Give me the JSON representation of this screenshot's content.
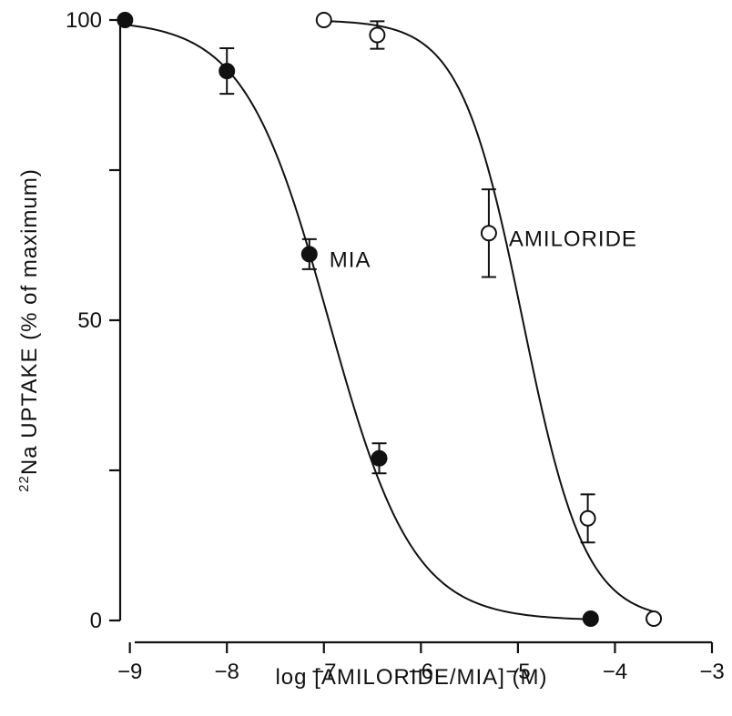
{
  "chart_data": {
    "type": "scatter",
    "xlabel": "log [AMILORIDE/MIA] (M)",
    "ylabel_prefix": "22",
    "ylabel_main": "Na UPTAKE (% of maximum)",
    "xlim": [
      -9.1,
      -3
    ],
    "ylim": [
      0,
      100
    ],
    "x_ticks": [
      -9,
      -8,
      -7,
      -6,
      -5,
      -4,
      -3
    ],
    "x_tick_labels": [
      "-9",
      "-8",
      "-7",
      "-6",
      "-5",
      "-4",
      "-3"
    ],
    "y_ticks": [
      0,
      25,
      50,
      75,
      100
    ],
    "y_tick_labels": [
      "0",
      "",
      "50",
      "",
      "100"
    ],
    "grid": false,
    "series": [
      {
        "name": "MIA",
        "marker": "filled-circle",
        "x": [
          -9.05,
          -8.0,
          -7.15,
          -6.43,
          -4.25
        ],
        "y": [
          100,
          91.5,
          61,
          27,
          0.3
        ],
        "err": [
          0,
          3.8,
          2.5,
          2.5,
          0
        ],
        "fit": {
          "ic50_log": -6.95,
          "hill": 1.0
        }
      },
      {
        "name": "AMILORIDE",
        "marker": "open-circle",
        "x": [
          -7.0,
          -6.45,
          -5.3,
          -4.28,
          -3.6
        ],
        "y": [
          100,
          97.5,
          64.5,
          17,
          0.3
        ],
        "err": [
          0,
          2.3,
          7.3,
          4.0,
          0
        ],
        "fit": {
          "ic50_log": -4.95,
          "hill": 1.35
        }
      }
    ]
  }
}
